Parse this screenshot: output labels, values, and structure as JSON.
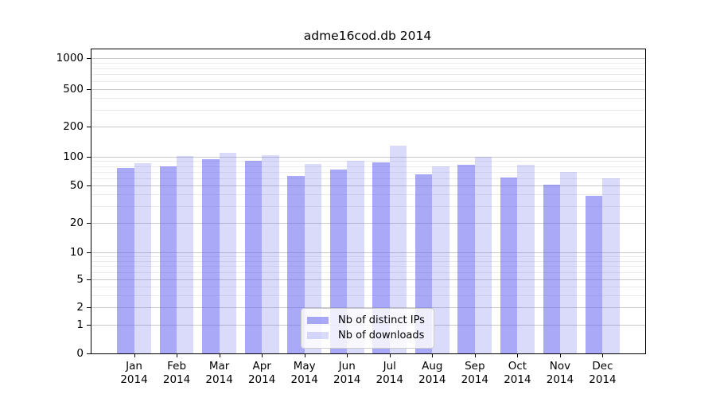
{
  "chart_data": {
    "type": "bar",
    "title": "adme16cod.db 2014",
    "categories": [
      "Jan",
      "Feb",
      "Mar",
      "Apr",
      "May",
      "Jun",
      "Jul",
      "Aug",
      "Sep",
      "Oct",
      "Nov",
      "Dec"
    ],
    "year": "2014",
    "series": [
      {
        "name": "Nb of distinct IPs",
        "values": [
          76,
          80,
          95,
          90,
          63,
          73,
          87,
          66,
          83,
          61,
          51,
          39
        ]
      },
      {
        "name": "Nb of downloads",
        "values": [
          85,
          101,
          110,
          103,
          84,
          91,
          128,
          80,
          100,
          83,
          69,
          59
        ]
      }
    ],
    "yticks": [
      0,
      1,
      2,
      5,
      10,
      20,
      50,
      100,
      200,
      500,
      1000
    ],
    "yscale": "symlog",
    "ylim": [
      0,
      1000
    ],
    "xlabel": "",
    "ylabel": "",
    "grid": true,
    "legend_position": "bottom-center",
    "colors": {
      "distinct_ips_fill": "rgba(99,99,240,0.55)",
      "downloads_fill": "rgba(99,99,240,0.24)",
      "grid_major": "#c9c9c9",
      "grid_minor": "#ebebeb",
      "axis": "#000000",
      "legend_border": "#cccccc"
    }
  }
}
